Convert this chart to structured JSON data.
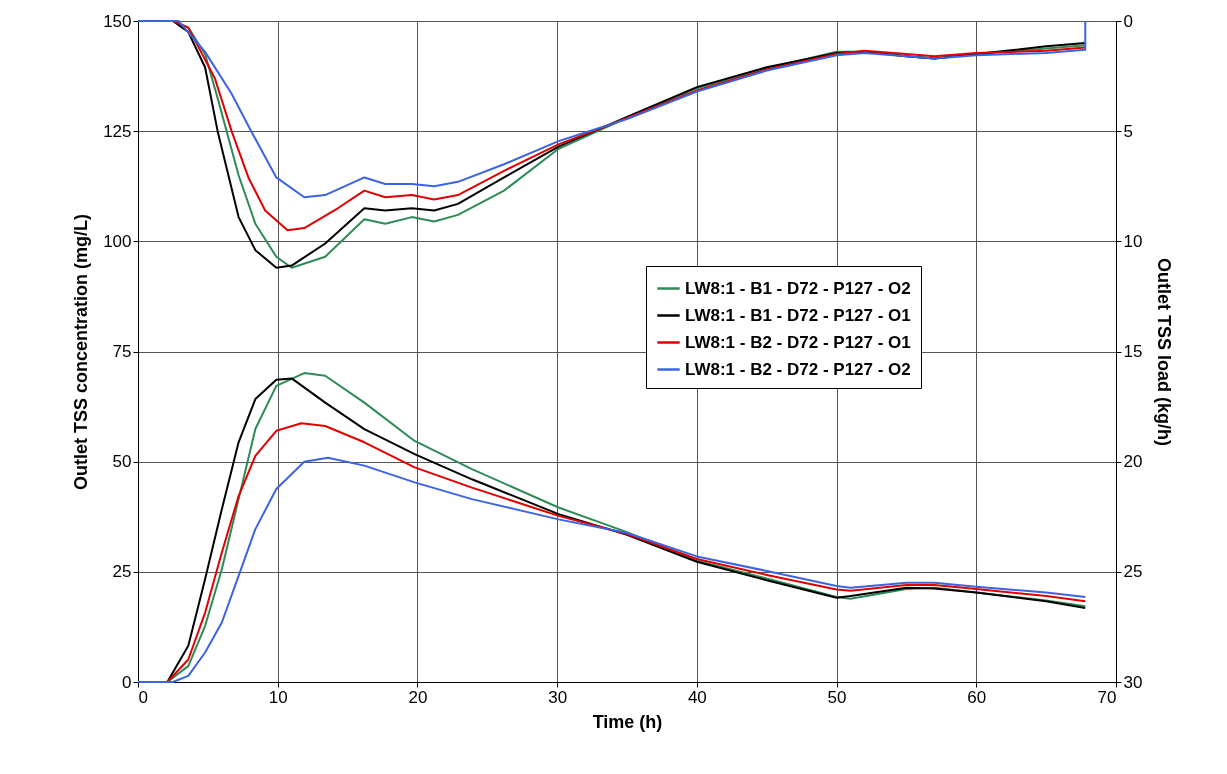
{
  "chart_data": {
    "type": "line",
    "xlabel": "Time (h)",
    "ylabel": "Outlet TSS concentration (mg/L)",
    "y2label": "Outlet TSS load (kg/h)",
    "xlim": [
      0,
      70
    ],
    "xticks": [
      0,
      10,
      20,
      30,
      40,
      50,
      60,
      70
    ],
    "ylim": [
      0,
      150
    ],
    "yticks": [
      0,
      25,
      50,
      75,
      100,
      125,
      150
    ],
    "y2lim": [
      30,
      0
    ],
    "y2ticks": [
      0,
      5,
      10,
      15,
      20,
      25,
      30
    ],
    "grid": true,
    "legend": "right",
    "marker": "none",
    "line_style": "solid",
    "series": [
      {
        "name": "LW8:1 - B1 - D72 - P127 - O2",
        "color": "#2e8b57",
        "x": [
          0,
          2.1,
          3.6,
          4.8,
          6.0,
          7.2,
          8.4,
          9.9,
          11.9,
          13.4,
          16.2,
          19.8,
          23.9,
          30.1,
          35,
          40,
          45,
          50,
          51,
          55,
          57,
          60,
          65,
          67.8
        ],
        "values": [
          0,
          0,
          3.6,
          12.7,
          25.6,
          41.5,
          57.4,
          67.2,
          70.1,
          69.5,
          63.4,
          54.7,
          48.3,
          39.6,
          34,
          27.5,
          23.5,
          19.3,
          18.9,
          21.1,
          21.4,
          20.3,
          18.5,
          17.2
        ]
      },
      {
        "name": "LW8:1 - B1 - D72 - P127 - O1",
        "color": "#000000",
        "x": [
          0,
          2.1,
          3.6,
          4.8,
          6.0,
          7.2,
          8.4,
          9.9,
          11.0,
          13.4,
          16.2,
          19.8,
          23.9,
          30.1,
          35,
          40,
          45,
          50,
          51,
          55,
          57,
          60,
          65,
          67.8
        ],
        "values": [
          0,
          0,
          8.2,
          23.3,
          39.2,
          54.4,
          64.2,
          68.6,
          68.9,
          63.4,
          57.4,
          51.7,
          46,
          38.1,
          33.4,
          27.3,
          23.1,
          19.1,
          19.5,
          21.4,
          21.2,
          20.3,
          18.3,
          16.8
        ]
      },
      {
        "name": "LW8:1 - B2 - D72 - P127 - O1",
        "color": "#e00000",
        "x": [
          0,
          2.1,
          3.6,
          4.8,
          6.0,
          7.2,
          8.4,
          9.9,
          11.7,
          13.4,
          16.2,
          19.8,
          23.9,
          30.1,
          35,
          40,
          45,
          50,
          51,
          55,
          57,
          60,
          65,
          67.8
        ],
        "values": [
          0,
          0,
          5.1,
          15.7,
          29.4,
          42.2,
          51.3,
          57,
          58.7,
          58.1,
          54.4,
          48.7,
          44.1,
          37.7,
          33.6,
          27.9,
          24.3,
          21,
          20.7,
          22,
          22,
          21.1,
          19.5,
          18.3
        ]
      },
      {
        "name": "LW8:1 - B2 - D72 - P127 - O2",
        "color": "#3c64e0",
        "x": [
          0,
          2.5,
          3.6,
          4.8,
          6.0,
          7.2,
          8.4,
          9.9,
          11.9,
          13.6,
          16.2,
          19.8,
          23.9,
          30.1,
          35,
          40,
          45,
          50,
          51,
          55,
          57,
          60,
          65,
          67.8
        ],
        "values": [
          0,
          0,
          1.4,
          6.7,
          13.5,
          24.1,
          34.7,
          43.8,
          50,
          50.9,
          49.1,
          45.3,
          41.5,
          36.9,
          33.8,
          28.5,
          25.2,
          21.8,
          21.4,
          22.5,
          22.5,
          21.6,
          20.3,
          19.3
        ]
      },
      {
        "color": "#2e8b57",
        "axis": "y2",
        "x": [
          0,
          2.5,
          3.6,
          4.8,
          5.7,
          7.2,
          8.4,
          9.9,
          11.0,
          13.4,
          16.2,
          17.7,
          19.6,
          21.2,
          22.9,
          26.2,
          30.1,
          35,
          40,
          45,
          50,
          52,
          55,
          57,
          60,
          65,
          67.8
        ],
        "values": [
          0,
          0,
          0.3,
          1.5,
          3.5,
          7,
          9.2,
          10.7,
          11.2,
          10.7,
          9,
          9.2,
          8.9,
          9.1,
          8.8,
          7.7,
          5.8,
          4.4,
          3.05,
          2.15,
          1.4,
          1.4,
          1.6,
          1.7,
          1.5,
          1.25,
          1.1
        ]
      },
      {
        "color": "#000000",
        "axis": "y2",
        "x": [
          0,
          2.5,
          3.6,
          4.8,
          5.7,
          7.2,
          8.4,
          9.9,
          11.0,
          13.4,
          16.2,
          17.7,
          19.6,
          21.2,
          22.9,
          26.2,
          30.1,
          35,
          40,
          45,
          50,
          52,
          55,
          57,
          60,
          65,
          67.8
        ],
        "values": [
          0,
          0,
          0.5,
          2.1,
          5,
          8.9,
          10.4,
          11.2,
          11.1,
          10.1,
          8.5,
          8.6,
          8.5,
          8.6,
          8.3,
          7.1,
          5.7,
          4.35,
          3.0,
          2.1,
          1.45,
          1.4,
          1.6,
          1.7,
          1.5,
          1.15,
          1.0
        ]
      },
      {
        "color": "#e00000",
        "axis": "y2",
        "x": [
          0,
          2.5,
          3.6,
          5.5,
          6.7,
          7.9,
          9.1,
          10.7,
          11.9,
          14.3,
          16.2,
          17.7,
          19.6,
          21.2,
          22.9,
          26.2,
          30.1,
          35,
          40,
          45,
          50,
          52,
          55,
          57,
          60,
          65,
          67.8
        ],
        "values": [
          0,
          0,
          0.3,
          2.6,
          5,
          7.1,
          8.6,
          9.5,
          9.4,
          8.5,
          7.7,
          8,
          7.9,
          8.1,
          7.9,
          6.8,
          5.6,
          4.4,
          3.15,
          2.2,
          1.5,
          1.35,
          1.5,
          1.6,
          1.45,
          1.35,
          1.2
        ]
      },
      {
        "color": "#3c64e0",
        "axis": "y2",
        "x": [
          0,
          2.9,
          4.8,
          6.7,
          8.1,
          9.9,
          11.9,
          13.4,
          16.2,
          17.7,
          19.6,
          21.2,
          22.9,
          26.2,
          30.1,
          35,
          40,
          45,
          50,
          52,
          55,
          57,
          60,
          65,
          67.8,
          67.8
        ],
        "values": [
          0,
          0,
          1.4,
          3.3,
          5,
          7.1,
          8,
          7.9,
          7.1,
          7.4,
          7.4,
          7.5,
          7.3,
          6.5,
          5.45,
          4.45,
          3.2,
          2.25,
          1.55,
          1.45,
          1.6,
          1.7,
          1.55,
          1.45,
          1.3,
          0
        ]
      }
    ]
  }
}
